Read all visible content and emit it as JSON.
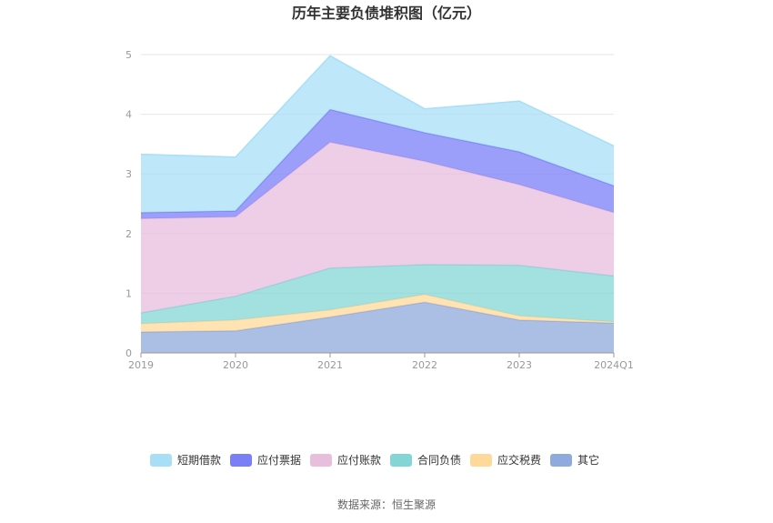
{
  "chart_data": {
    "type": "area",
    "stacked": true,
    "title": "历年主要负债堆积图（亿元）",
    "categories": [
      "2019",
      "2020",
      "2021",
      "2022",
      "2023",
      "2024Q1"
    ],
    "ylim": [
      0,
      5
    ],
    "yticks": [
      "0",
      "1",
      "2",
      "3",
      "4",
      "5"
    ],
    "grid": true,
    "legend_position": "bottom",
    "series": [
      {
        "name": "其它",
        "color": "#8faadc",
        "values": [
          0.35,
          0.37,
          0.6,
          0.85,
          0.55,
          0.5
        ]
      },
      {
        "name": "应交税费",
        "color": "#ffd99a",
        "values": [
          0.14,
          0.18,
          0.12,
          0.13,
          0.07,
          0.02
        ]
      },
      {
        "name": "合同负债",
        "color": "#84d6d6",
        "values": [
          0.18,
          0.4,
          0.7,
          0.5,
          0.85,
          0.77
        ]
      },
      {
        "name": "应付账款",
        "color": "#e8bedd",
        "values": [
          1.58,
          1.33,
          2.11,
          1.73,
          1.35,
          1.06
        ]
      },
      {
        "name": "应付票据",
        "color": "#7b7ff7",
        "values": [
          0.1,
          0.1,
          0.55,
          0.48,
          0.55,
          0.45
        ]
      },
      {
        "name": "短期借款",
        "color": "#a8dff7",
        "values": [
          0.98,
          0.9,
          0.9,
          0.4,
          0.85,
          0.67
        ]
      }
    ]
  },
  "legend_order": [
    "短期借款",
    "应付票据",
    "应付账款",
    "合同负债",
    "应交税费",
    "其它"
  ],
  "source_text": "数据来源：恒生聚源"
}
